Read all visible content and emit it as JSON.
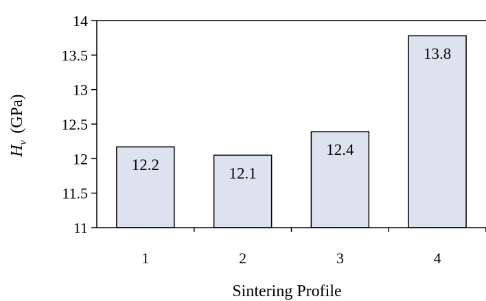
{
  "chart_data": {
    "type": "bar",
    "title": "",
    "categories": [
      "1",
      "2",
      "3",
      "4"
    ],
    "values": [
      12.17,
      12.05,
      12.39,
      13.78
    ],
    "data_labels": [
      "12.2",
      "12.1",
      "12.4",
      "13.8"
    ],
    "xlabel": "Sintering Profile",
    "ylabel": {
      "symbol": "H",
      "subscript": "v",
      "unit": "(GPa)"
    },
    "ylim": [
      11,
      14
    ],
    "yticks": [
      "11",
      "11.5",
      "12",
      "12.5",
      "13",
      "13.5",
      "14"
    ],
    "grid": false,
    "legend": "none",
    "colors": {
      "bar_fill": "#dce3ef",
      "bar_stroke": "#000000",
      "axis": "#000000"
    }
  }
}
